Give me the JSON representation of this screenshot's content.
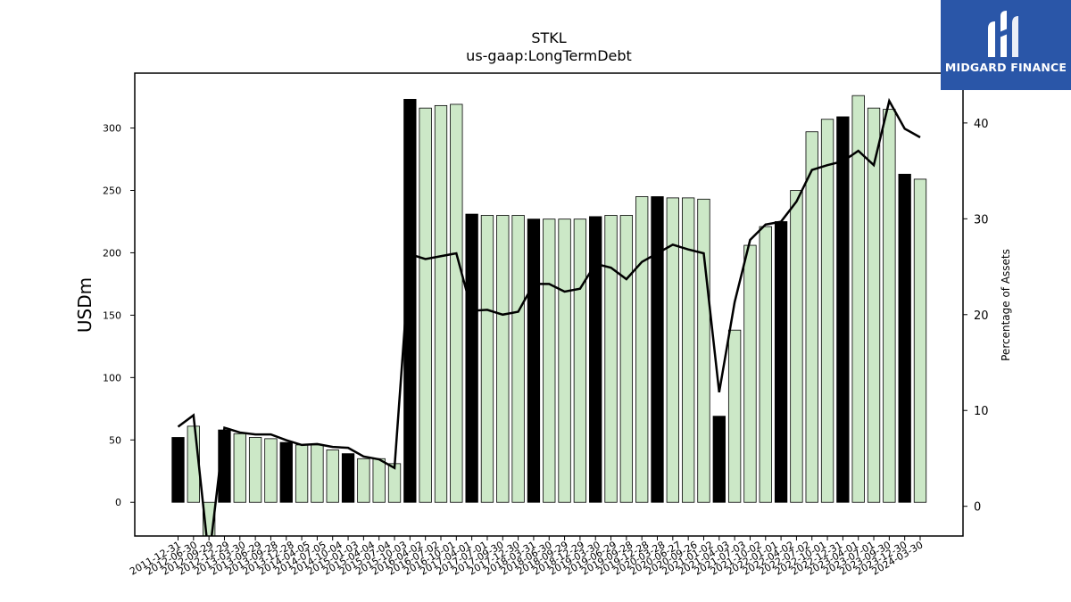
{
  "brand": {
    "name": "MIDGARD FINANCE",
    "icon": "midgard-logo-icon",
    "color": "#2a56a8"
  },
  "chart_data": {
    "type": "bar",
    "title": "STKL",
    "subtitle": "us-gaap:LongTermDebt",
    "ylabel": "USDm",
    "y2label": "Percentage of Assets",
    "ylim": [
      -27,
      344
    ],
    "y2lim": [
      -3.1,
      45.2
    ],
    "yticks": [
      0,
      50,
      100,
      150,
      200,
      250,
      300
    ],
    "y2ticks": [
      0,
      10,
      20,
      30,
      40
    ],
    "grid": false,
    "colors": {
      "annual_bar": "#000000",
      "quarter_bar": "#cce8c7",
      "line": "#000000"
    },
    "categories": [
      "2011-12-31",
      "2012-06-30",
      "2012-09-29",
      "2012-12-29",
      "2013-03-30",
      "2013-06-29",
      "2013-09-28",
      "2013-12-28",
      "2014-04-05",
      "2014-07-05",
      "2014-10-04",
      "2015-01-03",
      "2015-04-04",
      "2015-07-04",
      "2015-10-03",
      "2016-01-02",
      "2016-04-02",
      "2016-07-02",
      "2016-10-01",
      "2016-12-31",
      "2017-04-01",
      "2017-07-01",
      "2017-09-30",
      "2017-12-30",
      "2018-03-31",
      "2018-06-30",
      "2018-09-29",
      "2018-12-29",
      "2019-03-30",
      "2019-06-29",
      "2019-09-28",
      "2019-12-28",
      "2020-03-28",
      "2020-06-27",
      "2020-09-26",
      "2021-01-02",
      "2021-04-03",
      "2021-07-03",
      "2021-10-02",
      "2022-01-01",
      "2022-04-02",
      "2022-07-02",
      "2022-10-01",
      "2022-12-31",
      "2023-04-01",
      "2023-07-01",
      "2023-09-30",
      "2023-12-30",
      "2024-03-30"
    ],
    "tick_labels": [
      "2011-12-31",
      "2012-06-30",
      "2012-09-29",
      "2012-12-29",
      "2013-03-30",
      "2013-06-29",
      "2013-09-28",
      "2013-12-28",
      "2014-04-05",
      "2014-07-05",
      "2014-10-04",
      "2015-01-03",
      "2015-04-04",
      "2015-07-04",
      "2015-10-03",
      "2016-04-02",
      "2016-07-02",
      "2016-10-01",
      "2017-04-01",
      "2017-07-01",
      "2017-09-30",
      "2017-12-30",
      "2018-03-31",
      "2018-06-30",
      "2018-09-29",
      "2018-12-29",
      "2019-03-30",
      "2019-06-29",
      "2019-09-28",
      "2019-12-28",
      "2020-03-28",
      "2020-06-27",
      "2020-09-26",
      "2021-01-02",
      "2021-04-03",
      "2021-07-03",
      "2021-10-02",
      "2022-01-01",
      "2022-04-02",
      "2022-07-02",
      "2022-10-01",
      "2022-12-31",
      "2023-04-01",
      "2023-07-01",
      "2023-09-30",
      "2023-12-30",
      "2024-03-30"
    ],
    "series": [
      {
        "kind": "bar",
        "values": [
          52,
          61,
          -40,
          58,
          55,
          52,
          51,
          48,
          46,
          46,
          42,
          39,
          35,
          35,
          31,
          323,
          316,
          318,
          319,
          231,
          230,
          230,
          230,
          227,
          227,
          227,
          227,
          229,
          230,
          230,
          245,
          245,
          244,
          244,
          243,
          69,
          138,
          206,
          221,
          225,
          250,
          297,
          307,
          309,
          326,
          316,
          315,
          263,
          259
        ],
        "annual": [
          true,
          false,
          false,
          true,
          false,
          false,
          false,
          true,
          false,
          false,
          false,
          true,
          false,
          false,
          false,
          true,
          false,
          false,
          false,
          true,
          false,
          false,
          false,
          true,
          false,
          false,
          false,
          true,
          false,
          false,
          false,
          true,
          false,
          false,
          false,
          true,
          false,
          false,
          false,
          true,
          false,
          false,
          false,
          true,
          false,
          false,
          false,
          true,
          false
        ]
      },
      {
        "kind": "line",
        "axis": "right",
        "values": [
          8.3,
          9.5,
          -5.5,
          8.2,
          7.7,
          7.5,
          7.5,
          6.9,
          6.4,
          6.5,
          6.2,
          6.1,
          5.2,
          4.9,
          4.0,
          26.3,
          25.8,
          26.1,
          26.4,
          20.4,
          20.5,
          20.0,
          20.3,
          23.2,
          23.2,
          22.4,
          22.7,
          25.3,
          24.9,
          23.7,
          25.5,
          26.4,
          27.3,
          26.8,
          26.4,
          11.9,
          21.3,
          27.8,
          29.4,
          29.7,
          31.8,
          35.1,
          35.6,
          36.0,
          37.1,
          35.6,
          42.3,
          39.4,
          38.5
        ]
      }
    ]
  }
}
